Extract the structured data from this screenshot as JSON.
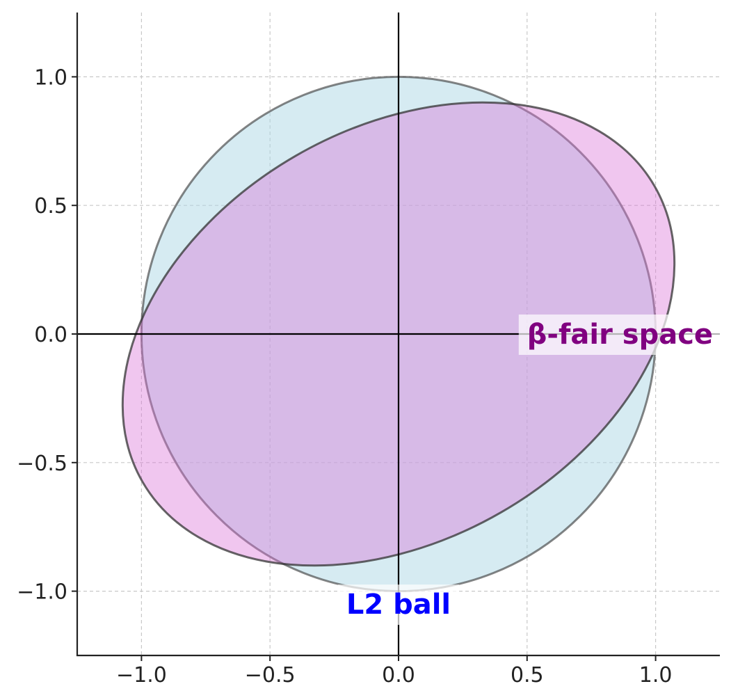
{
  "chart_data": {
    "type": "scatter",
    "title": "",
    "xlabel": "",
    "ylabel": "",
    "xlim": [
      -1.25,
      1.25
    ],
    "ylim": [
      -1.25,
      1.25
    ],
    "x_ticks": [
      -1.0,
      -0.5,
      0.0,
      0.5,
      1.0
    ],
    "y_ticks": [
      -1.0,
      -0.5,
      0.0,
      0.5,
      1.0
    ],
    "x_tick_labels": [
      "−1.0",
      "−0.5",
      "0.0",
      "0.5",
      "1.0"
    ],
    "y_tick_labels": [
      "−1.0",
      "−0.5",
      "0.0",
      "0.5",
      "1.0"
    ],
    "grid": true,
    "axis_lines_through_origin": true,
    "shapes": [
      {
        "kind": "circle",
        "center": [
          0,
          0
        ],
        "radius": 1.0,
        "fill_color": "#add8e6",
        "edge_color": "#333333",
        "label": "L2 ball",
        "label_color": "#0000ff",
        "label_position": [
          0.0,
          -1.05
        ]
      },
      {
        "kind": "ellipse",
        "center": [
          0,
          0
        ],
        "semi_major": 1.15,
        "semi_minor": 0.8,
        "rotation_deg": 30,
        "fill_color": "#da70d6",
        "edge_color": "#333333",
        "label": "β-fair space",
        "label_color": "#800080",
        "label_position": [
          0.5,
          0.0
        ]
      }
    ]
  }
}
